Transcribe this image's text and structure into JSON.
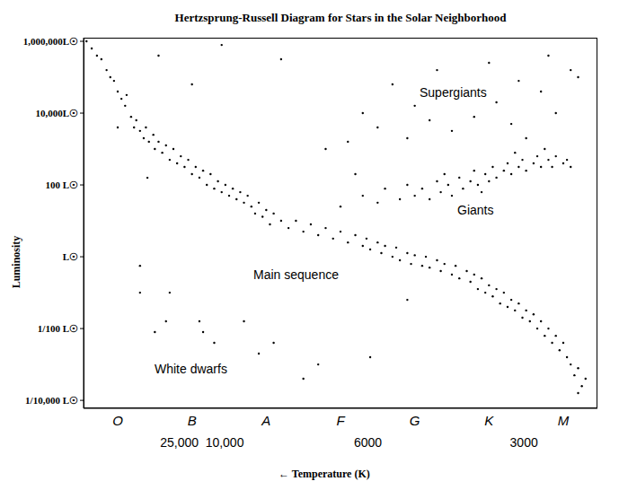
{
  "chart_data": {
    "type": "scatter",
    "title": "Hertzsprung-Russell Diagram for Stars in the Solar Neighborhood",
    "x_label": "← Temperature (K)",
    "y_label": "Luminosity",
    "color": "#000000",
    "marker": "circle",
    "grid": false,
    "log": "y",
    "xlim": [
      -0.46,
      6.46
    ],
    "xticks": [
      {
        "value": 0,
        "label": "O"
      },
      {
        "value": 1,
        "label": "B"
      },
      {
        "value": 2,
        "label": "A"
      },
      {
        "value": 3,
        "label": "F"
      },
      {
        "value": 4,
        "label": "G"
      },
      {
        "value": 5,
        "label": "K"
      },
      {
        "value": 6,
        "label": "M"
      }
    ],
    "temperature_ticks": [
      {
        "value": 0.83,
        "label": "25,000"
      },
      {
        "value": 1.44,
        "label": "10,000"
      },
      {
        "value": 3.37,
        "label": "6000"
      },
      {
        "value": 5.47,
        "label": "3000"
      }
    ],
    "ylim": [
      6e-05,
      1260000
    ],
    "yticks": [
      {
        "value": 0.0001,
        "label": "1/10,000 L☉"
      },
      {
        "value": 0.01,
        "label": "1/100 L☉"
      },
      {
        "value": 1,
        "label": "L☉"
      },
      {
        "value": 100,
        "label": "100 L☉"
      },
      {
        "value": 10000,
        "label": "10,000L☉"
      },
      {
        "value": 1000000,
        "label": "1,000,000L☉"
      }
    ],
    "annotations": [
      "Supergiants",
      "Giants",
      "Main sequence",
      "White dwarfs"
    ],
    "x": [
      -0.42,
      -0.35,
      -0.28,
      -0.22,
      -0.15,
      -0.1,
      -0.05,
      0.0,
      0.05,
      0.1,
      0.12,
      0.18,
      0.22,
      0.25,
      0.3,
      0.35,
      0.38,
      0.42,
      0.48,
      0.5,
      0.55,
      0.6,
      0.65,
      0.7,
      0.75,
      0.8,
      0.85,
      0.9,
      0.95,
      1.0,
      1.05,
      1.1,
      1.15,
      1.2,
      1.25,
      1.3,
      1.35,
      1.4,
      1.45,
      1.5,
      1.55,
      1.6,
      1.65,
      1.7,
      1.75,
      1.8,
      1.85,
      1.9,
      1.95,
      2.0,
      2.05,
      2.1,
      2.2,
      2.3,
      2.4,
      2.5,
      2.6,
      2.7,
      2.8,
      2.9,
      3.0,
      3.1,
      3.2,
      3.3,
      3.35,
      3.4,
      3.5,
      3.55,
      3.6,
      3.7,
      3.75,
      3.8,
      3.9,
      3.95,
      4.0,
      4.1,
      4.15,
      4.2,
      4.3,
      4.35,
      4.4,
      4.5,
      4.55,
      4.6,
      4.7,
      4.75,
      4.8,
      4.85,
      4.9,
      4.95,
      5.0,
      5.05,
      5.1,
      5.15,
      5.2,
      5.25,
      5.3,
      5.35,
      5.4,
      5.45,
      5.5,
      5.55,
      5.6,
      5.65,
      5.7,
      5.75,
      5.8,
      5.85,
      5.9,
      5.95,
      6.0,
      6.05,
      6.1,
      6.15,
      6.2,
      6.25,
      6.3,
      6.2,
      3.3,
      3.5,
      3.6,
      3.8,
      3.9,
      4.0,
      4.1,
      4.2,
      4.3,
      4.35,
      4.45,
      4.5,
      4.6,
      4.65,
      4.75,
      4.8,
      4.85,
      4.95,
      5.0,
      5.05,
      5.1,
      5.2,
      5.25,
      5.3,
      5.4,
      5.45,
      5.5,
      5.6,
      5.65,
      5.7,
      5.8,
      5.85,
      5.9,
      6.0,
      6.05,
      6.1,
      4.4,
      4.9,
      5.35,
      5.75,
      3.0,
      3.2,
      3.1,
      3.3,
      3.5,
      3.7,
      3.9,
      4.0,
      4.2,
      4.3,
      4.5,
      4.6,
      4.8,
      5.0,
      5.1,
      5.3,
      5.4,
      5.5,
      5.7,
      5.8,
      5.9,
      6.1,
      6.2,
      2.2,
      1.4,
      0.55,
      1.0,
      2.8,
      0.0,
      0.4,
      0.3,
      0.3,
      0.65,
      0.7,
      1.1,
      1.15,
      1.3,
      1.7,
      1.9,
      2.1,
      2.5,
      2.7,
      0.5,
      3.9,
      3.4
    ],
    "values": [
      1000000,
      630000,
      400000,
      316000,
      158000,
      100000,
      79000,
      40000,
      25000,
      16000,
      32000,
      7900,
      4000,
      6300,
      3200,
      2000,
      4000,
      1600,
      2500,
      1000,
      1600,
      790,
      1260,
      500,
      1000,
      400,
      630,
      316,
      500,
      200,
      316,
      160,
      250,
      100,
      200,
      79,
      126,
      63,
      100,
      50,
      79,
      40,
      63,
      32,
      50,
      25,
      16,
      32,
      13,
      20,
      8,
      16,
      10,
      6.3,
      10,
      5,
      8,
      4,
      6.3,
      3.2,
      5,
      2.5,
      4,
      2,
      3.2,
      1.6,
      2.5,
      1.26,
      2,
      1,
      1.8,
      0.8,
      1.26,
      0.63,
      1.1,
      0.56,
      1,
      0.5,
      0.8,
      0.4,
      0.63,
      0.32,
      0.56,
      0.25,
      0.4,
      0.2,
      0.32,
      0.126,
      0.25,
      0.1,
      0.16,
      0.079,
      0.126,
      0.05,
      0.1,
      0.04,
      0.063,
      0.032,
      0.05,
      0.02,
      0.032,
      0.016,
      0.025,
      0.01,
      0.016,
      0.0063,
      0.01,
      0.004,
      0.0063,
      0.0025,
      0.004,
      0.0016,
      0.001,
      0.0005,
      0.00079,
      0.00025,
      0.0004,
      0.00016,
      50,
      32,
      79,
      40,
      100,
      50,
      79,
      40,
      126,
      63,
      100,
      50,
      160,
      79,
      126,
      250,
      100,
      200,
      126,
      316,
      160,
      250,
      400,
      200,
      316,
      500,
      250,
      400,
      630,
      316,
      500,
      316,
      630,
      400,
      500,
      316,
      200,
      63,
      790,
      1000,
      25,
      200,
      1600,
      10000,
      4000,
      63000,
      2000,
      16000,
      6300,
      158000,
      3200,
      32000,
      7900,
      251000,
      20000,
      5000,
      79000,
      2000,
      40000,
      400000,
      10000,
      158000,
      100000,
      316000,
      790000,
      400000,
      63000,
      1000,
      4000,
      158,
      0.1,
      0.56,
      0.016,
      0.1,
      0.016,
      0.008,
      0.004,
      0.016,
      0.002,
      0.004,
      0.0004,
      0.001,
      0.008,
      0.063,
      0.0016
    ]
  }
}
